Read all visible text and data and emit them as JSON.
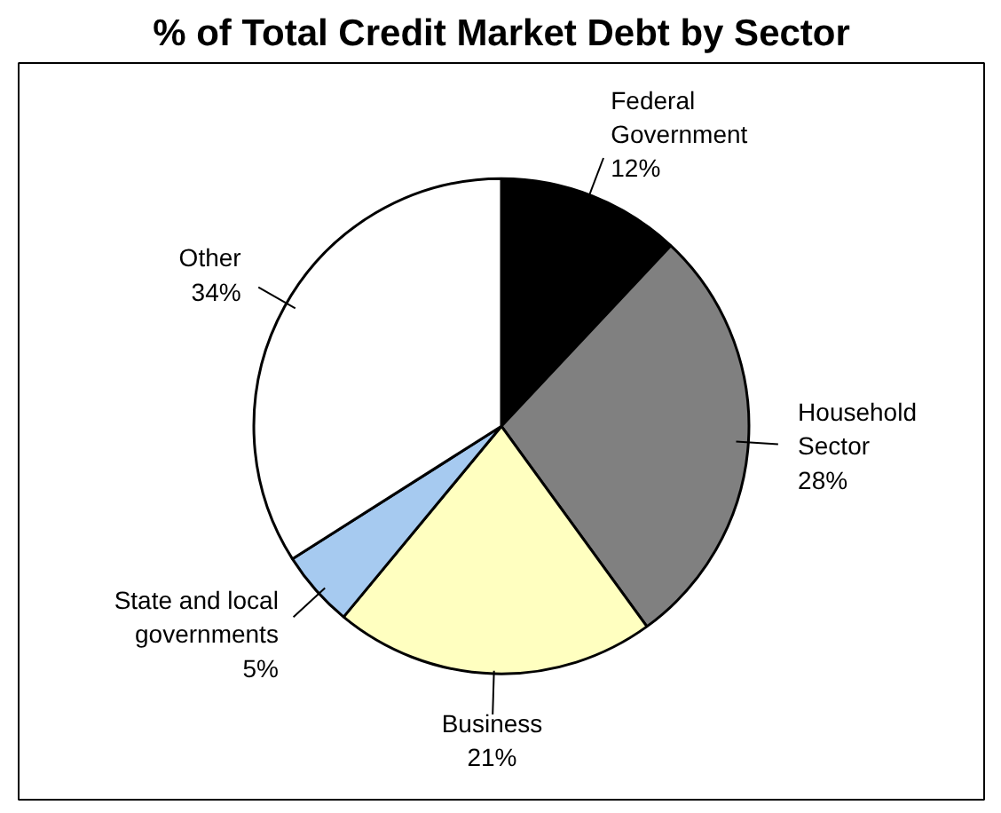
{
  "chart_data": {
    "type": "pie",
    "title": "% of Total Credit Market Debt by Sector",
    "categories": [
      "Federal Government",
      "Household Sector",
      "Business",
      "State and local governments",
      "Other"
    ],
    "values": [
      12,
      28,
      21,
      5,
      34
    ],
    "value_labels": [
      "12%",
      "28%",
      "21%",
      "5%",
      "34%"
    ],
    "colors": [
      "#000000",
      "#808080",
      "#ffffc0",
      "#a6caf0",
      "#ffffff"
    ]
  }
}
